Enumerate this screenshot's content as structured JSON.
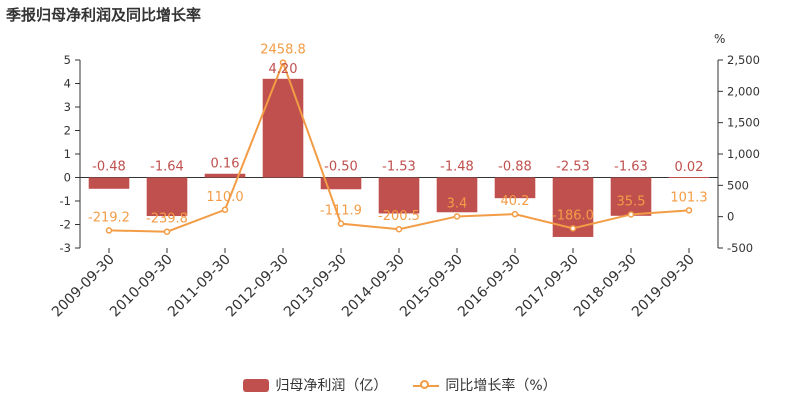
{
  "title": "季报归母净利润及同比增长率",
  "chart_data": {
    "type": "bar",
    "categories": [
      "2009-09-30",
      "2010-09-30",
      "2011-09-30",
      "2012-09-30",
      "2013-09-30",
      "2014-09-30",
      "2015-09-30",
      "2016-09-30",
      "2017-09-30",
      "2018-09-30",
      "2019-09-30"
    ],
    "series": [
      {
        "name": "归母净利润（亿）",
        "type": "bar",
        "axis": "left",
        "color": "#c0504d",
        "values": [
          -0.48,
          -1.64,
          0.16,
          4.2,
          -0.5,
          -1.53,
          -1.48,
          -0.88,
          -2.53,
          -1.63,
          0.02
        ],
        "labels": [
          "-0.48",
          "-1.64",
          "0.16",
          "4.20",
          "-0.50",
          "-1.53",
          "-1.48",
          "-0.88",
          "-2.53",
          "-1.63",
          "0.02"
        ]
      },
      {
        "name": "同比增长率（%）",
        "type": "line",
        "axis": "right",
        "color": "#f39c46",
        "values": [
          -219.2,
          -239.8,
          110.0,
          2458.8,
          -111.9,
          -200.5,
          3.4,
          40.2,
          -186.0,
          35.5,
          101.3
        ],
        "labels": [
          "-219.2",
          "-239.8",
          "110.0",
          "2458.8",
          "-111.9",
          "-200.5",
          "3.4",
          "40.2",
          "-186.0",
          "35.5",
          "101.3"
        ]
      }
    ],
    "ylim": [
      -3,
      5
    ],
    "yticks": [
      -3,
      -2,
      -1,
      0,
      1,
      2,
      3,
      4,
      5
    ],
    "y2lim": [
      -500,
      2500
    ],
    "y2ticks": [
      -500,
      0,
      500,
      "1,000",
      "1,500",
      "2,000",
      "2,500"
    ],
    "y2label": "%",
    "legend": "bottom",
    "grid": false
  }
}
